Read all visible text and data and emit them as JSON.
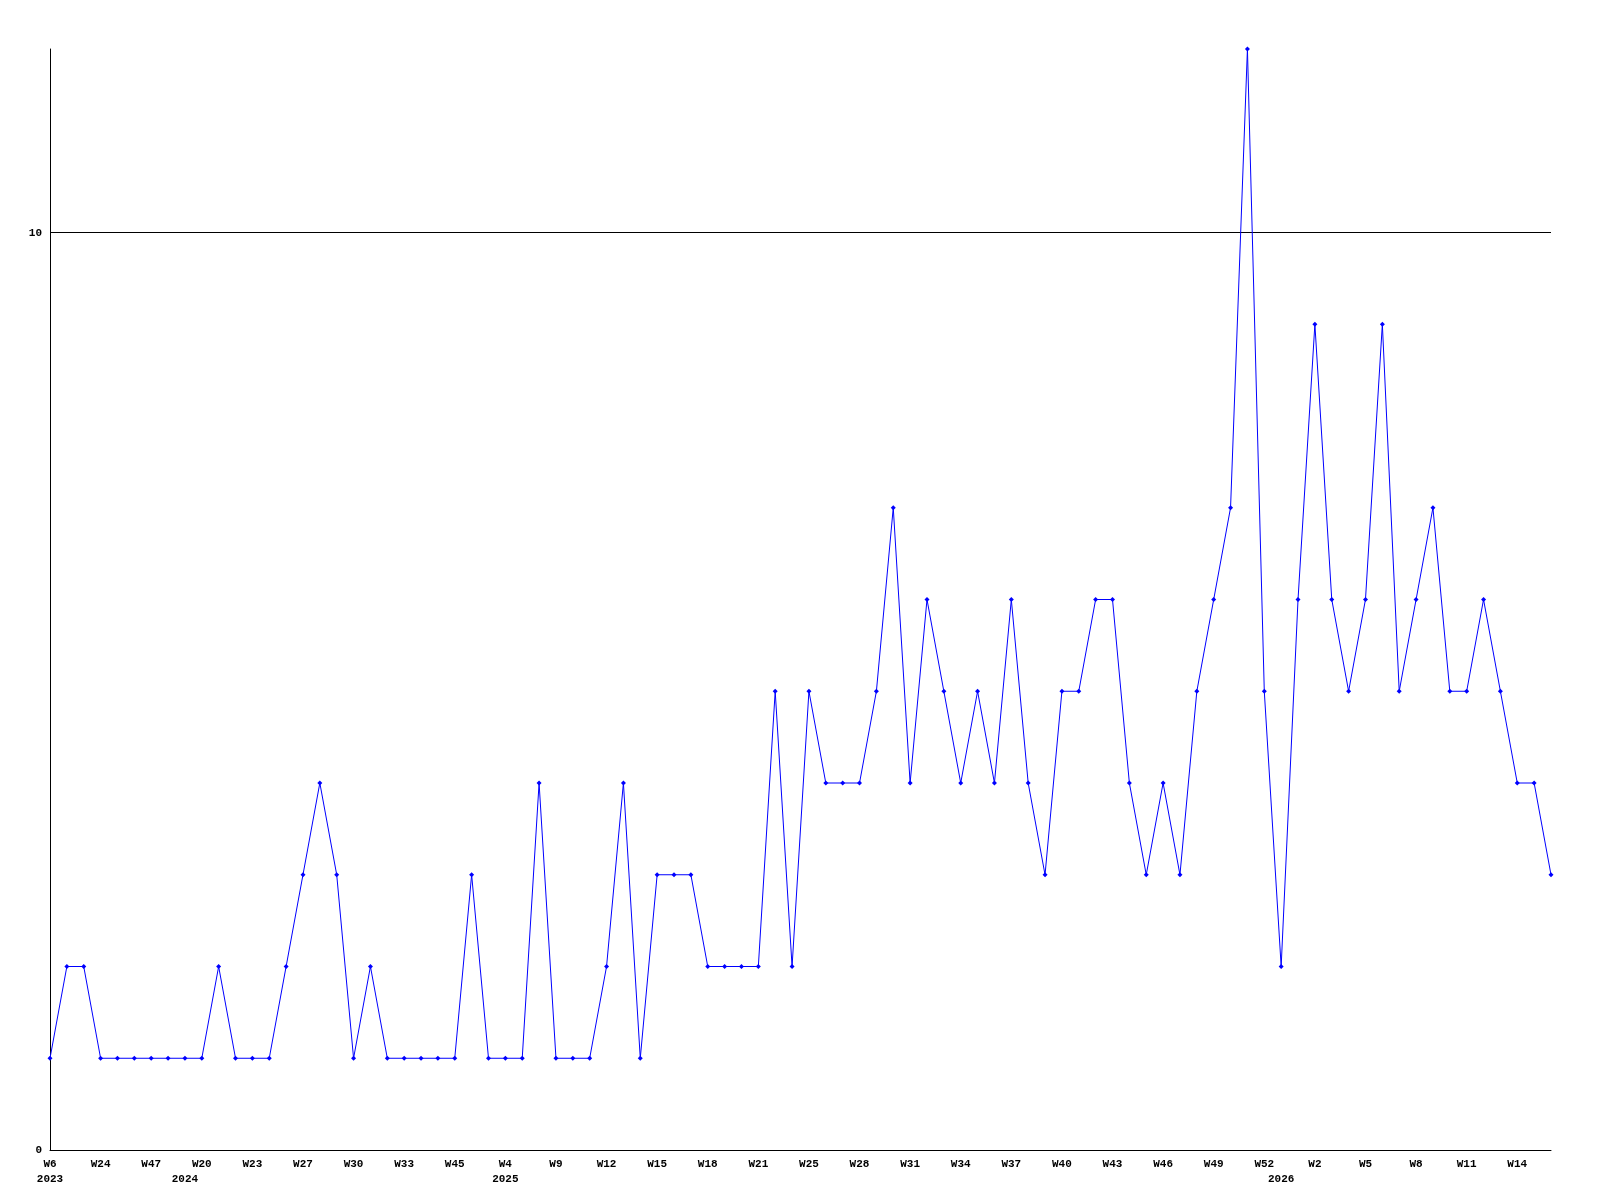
{
  "chart_data": {
    "type": "line",
    "categories": [
      "W6\n2023",
      null,
      null,
      "W24",
      null,
      null,
      "W47",
      null,
      "\n2024",
      "W20",
      null,
      null,
      "W23",
      null,
      null,
      "W27",
      null,
      null,
      "W30",
      null,
      null,
      "W33",
      null,
      null,
      "W45",
      null,
      null,
      "W4\n2025",
      null,
      null,
      "W9",
      null,
      null,
      "W12",
      null,
      null,
      "W15",
      null,
      null,
      "W18",
      null,
      null,
      "W21",
      null,
      null,
      "W25",
      null,
      null,
      "W28",
      null,
      null,
      "W31",
      null,
      null,
      "W34",
      null,
      null,
      "W37",
      null,
      null,
      "W40",
      null,
      null,
      "W43",
      null,
      null,
      "W46",
      null,
      null,
      "W49",
      null,
      null,
      "W52",
      "\n2026",
      null,
      "W2",
      null,
      null,
      "W5",
      null,
      null,
      "W8",
      null,
      null,
      "W11",
      null,
      null,
      "W14",
      null,
      null
    ],
    "series": [
      {
        "color": "#0000ff",
        "values": [
          1,
          2,
          2,
          1,
          1,
          1,
          1,
          1,
          1,
          1,
          2,
          1,
          1,
          1,
          2,
          3,
          4,
          3,
          1,
          2,
          1,
          1,
          1,
          1,
          1,
          3,
          1,
          1,
          1,
          4,
          1,
          1,
          1,
          2,
          4,
          1,
          3,
          3,
          3,
          2,
          2,
          2,
          2,
          5,
          2,
          5,
          4,
          4,
          4,
          5,
          7,
          4,
          6,
          5,
          4,
          5,
          4,
          6,
          4,
          3,
          5,
          5,
          6,
          6,
          4,
          3,
          4,
          3,
          5,
          6,
          7,
          12,
          5,
          2,
          6,
          9,
          6,
          5,
          6,
          9,
          5,
          6,
          7,
          5,
          5,
          6,
          5,
          4,
          4,
          3
        ]
      }
    ],
    "ylim": [
      0,
      12
    ],
    "yticks": [
      0,
      10
    ],
    "grid": "y",
    "marker": "diamond",
    "line_style": "solid"
  }
}
